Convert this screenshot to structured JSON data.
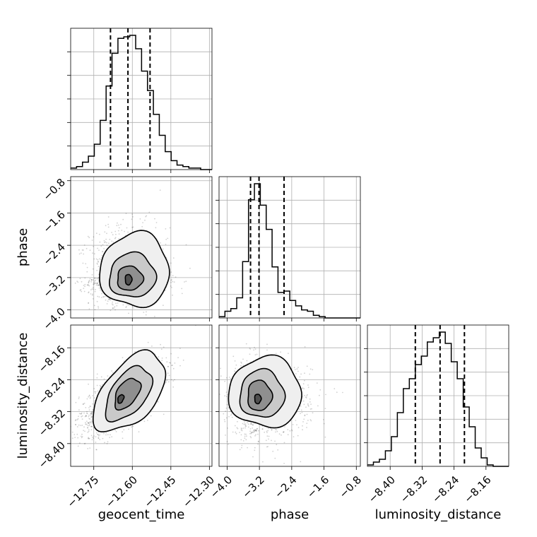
{
  "chart_data": {
    "type": "corner",
    "parameters": [
      "geocent_time",
      "phase",
      "luminosity_distance"
    ],
    "axis_labels": {
      "x": [
        "geocent_time",
        "phase",
        "luminosity_distance"
      ],
      "y": [
        "phase",
        "luminosity_distance"
      ]
    },
    "ranges": {
      "geocent_time": [
        -12.84,
        -12.29
      ],
      "phase": [
        -4.2,
        -0.7
      ],
      "luminosity_distance": [
        -8.457,
        -8.103
      ]
    },
    "ticks": {
      "geocent_time": [
        -12.75,
        -12.6,
        -12.45,
        -12.3
      ],
      "phase": [
        -4.0,
        -3.2,
        -2.4,
        -1.6,
        -0.8
      ],
      "luminosity_distance": [
        -8.4,
        -8.32,
        -8.24,
        -8.16
      ]
    },
    "tick_labels": {
      "geocent_time": [
        "−12.75",
        "−12.60",
        "−12.45",
        "−12.30"
      ],
      "phase": [
        "−4.0",
        "−3.2",
        "−2.4",
        "−1.6",
        "−0.8"
      ],
      "luminosity_distance": [
        "−8.40",
        "−8.32",
        "−8.24",
        "−8.16"
      ]
    },
    "grid": true,
    "marginals": {
      "geocent_time": {
        "quantiles": [
          -12.685,
          -12.617,
          -12.531
        ],
        "bins": [
          -12.84,
          -12.817,
          -12.794,
          -12.771,
          -12.748,
          -12.725,
          -12.702,
          -12.679,
          -12.656,
          -12.633,
          -12.61,
          -12.587,
          -12.564,
          -12.541,
          -12.518,
          -12.495,
          -12.472,
          -12.449,
          -12.426,
          -12.403,
          -12.38,
          -12.357,
          -12.334,
          -12.311,
          -12.29
        ],
        "counts": [
          1,
          2,
          5,
          9,
          17,
          33,
          56,
          78,
          88,
          89,
          90,
          81,
          66,
          53,
          37,
          23,
          12,
          6,
          3,
          2,
          1,
          1,
          0,
          0
        ]
      },
      "phase": {
        "quantiles": [
          -3.42,
          -3.21,
          -2.59
        ],
        "bins": [
          -4.2,
          -4.054,
          -3.908,
          -3.762,
          -3.616,
          -3.47,
          -3.324,
          -3.178,
          -3.032,
          -2.886,
          -2.74,
          -2.594,
          -2.448,
          -2.302,
          -2.156,
          -2.01,
          -1.864,
          -1.718,
          -1.572,
          -1.426,
          -1.28,
          -1.134,
          -0.988,
          -0.842,
          -0.7
        ],
        "counts": [
          1,
          5,
          7,
          15,
          42,
          88,
          100,
          84,
          66,
          38,
          19,
          20,
          13,
          9,
          6,
          5,
          2,
          1,
          0,
          0,
          0,
          0,
          0,
          0
        ]
      },
      "luminosity_distance": {
        "quantiles": [
          -8.337,
          -8.275,
          -8.214
        ],
        "bins": [
          -8.457,
          -8.442,
          -8.427,
          -8.412,
          -8.397,
          -8.382,
          -8.367,
          -8.352,
          -8.337,
          -8.322,
          -8.307,
          -8.292,
          -8.277,
          -8.262,
          -8.247,
          -8.232,
          -8.217,
          -8.202,
          -8.187,
          -8.172,
          -8.157,
          -8.142,
          -8.127,
          -8.112,
          -8.103
        ],
        "counts": [
          1,
          3,
          5,
          11,
          21,
          38,
          55,
          62,
          72,
          78,
          88,
          91,
          95,
          87,
          74,
          62,
          42,
          28,
          13,
          6,
          1,
          0,
          0,
          0
        ]
      }
    },
    "joint": [
      {
        "x": "geocent_time",
        "y": "phase",
        "peak": [
          -12.615,
          -3.25
        ],
        "spread": [
          0.065,
          0.38
        ],
        "correlation": 0.05,
        "contours": [
          {
            "level": 1,
            "center": [
              -12.615,
              -3.25
            ],
            "rx": 0.013,
            "ry": 0.13,
            "skew": 0.0
          },
          {
            "level": 2,
            "center": [
              -12.61,
              -3.22
            ],
            "rx": 0.05,
            "ry": 0.3,
            "skew": 0.0
          },
          {
            "level": 3,
            "center": [
              -12.6,
              -3.15
            ],
            "rx": 0.09,
            "ry": 0.55,
            "skew": 0.02
          },
          {
            "level": 4,
            "center": [
              -12.59,
              -3.02
            ],
            "rx": 0.135,
            "ry": 0.92,
            "skew": 0.02
          }
        ]
      },
      {
        "x": "geocent_time",
        "y": "luminosity_distance",
        "peak": [
          -12.645,
          -8.288
        ],
        "spread": [
          0.07,
          0.04
        ],
        "correlation": 0.65,
        "contours": [
          {
            "level": 1,
            "center": [
              -12.645,
              -8.288
            ],
            "rx": 0.012,
            "ry": 0.01,
            "skew": 0.4
          },
          {
            "level": 2,
            "center": [
              -12.62,
              -8.275
            ],
            "rx": 0.05,
            "ry": 0.034,
            "skew": 0.55
          },
          {
            "level": 3,
            "center": [
              -12.615,
              -8.275
            ],
            "rx": 0.09,
            "ry": 0.058,
            "skew": 0.6
          },
          {
            "level": 4,
            "center": [
              -12.61,
              -8.272
            ],
            "rx": 0.14,
            "ry": 0.085,
            "skew": 0.6
          }
        ]
      },
      {
        "x": "phase",
        "y": "luminosity_distance",
        "peak": [
          -3.25,
          -8.288
        ],
        "spread": [
          0.38,
          0.04
        ],
        "correlation": 0.0,
        "contours": [
          {
            "level": 1,
            "center": [
              -3.24,
              -8.288
            ],
            "rx": 0.08,
            "ry": 0.012,
            "skew": 0.0
          },
          {
            "level": 2,
            "center": [
              -3.2,
              -8.28
            ],
            "rx": 0.3,
            "ry": 0.038,
            "skew": 0.0
          },
          {
            "level": 3,
            "center": [
              -3.14,
              -8.276
            ],
            "rx": 0.55,
            "ry": 0.06,
            "skew": 0.0
          },
          {
            "level": 4,
            "center": [
              -3.05,
              -8.272
            ],
            "rx": 0.9,
            "ry": 0.088,
            "skew": 0.0
          }
        ]
      }
    ]
  }
}
